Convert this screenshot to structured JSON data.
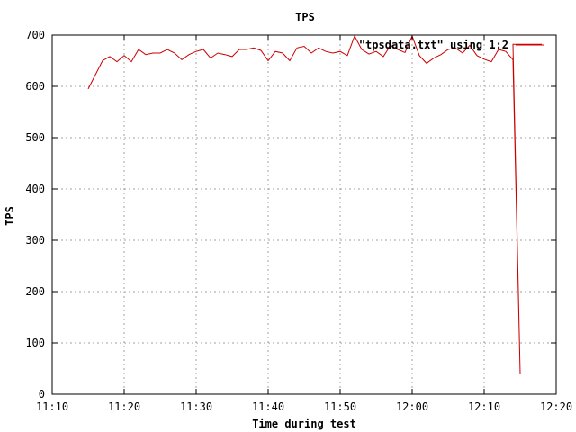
{
  "chart_data": {
    "type": "line",
    "title": "TPS",
    "xlabel": "Time during test",
    "ylabel": "TPS",
    "x_type": "time",
    "xlim": [
      "11:10",
      "12:20"
    ],
    "ylim": [
      0,
      700
    ],
    "x_ticks": [
      "11:10",
      "11:20",
      "11:30",
      "11:40",
      "11:50",
      "12:00",
      "12:10",
      "12:20"
    ],
    "y_ticks": [
      "0",
      "100",
      "200",
      "300",
      "400",
      "500",
      "600",
      "700"
    ],
    "grid": true,
    "legend_position": "top-right",
    "series": [
      {
        "name": "\"tpsdata.txt\" using 1:2",
        "color": "#cc0000",
        "points": [
          [
            "11:15",
            595
          ],
          [
            "11:17",
            650
          ],
          [
            "11:18",
            658
          ],
          [
            "11:19",
            648
          ],
          [
            "11:20",
            660
          ],
          [
            "11:21",
            648
          ],
          [
            "11:22",
            672
          ],
          [
            "11:23",
            662
          ],
          [
            "11:24",
            665
          ],
          [
            "11:25",
            665
          ],
          [
            "11:26",
            672
          ],
          [
            "11:27",
            665
          ],
          [
            "11:28",
            652
          ],
          [
            "11:29",
            662
          ],
          [
            "11:30",
            668
          ],
          [
            "11:31",
            672
          ],
          [
            "11:32",
            655
          ],
          [
            "11:33",
            665
          ],
          [
            "11:34",
            662
          ],
          [
            "11:35",
            658
          ],
          [
            "11:36",
            672
          ],
          [
            "11:37",
            672
          ],
          [
            "11:38",
            675
          ],
          [
            "11:39",
            670
          ],
          [
            "11:40",
            650
          ],
          [
            "11:41",
            668
          ],
          [
            "11:42",
            665
          ],
          [
            "11:43",
            650
          ],
          [
            "11:44",
            675
          ],
          [
            "11:45",
            678
          ],
          [
            "11:46",
            665
          ],
          [
            "11:47",
            675
          ],
          [
            "11:48",
            668
          ],
          [
            "11:49",
            665
          ],
          [
            "11:50",
            668
          ],
          [
            "11:51",
            660
          ],
          [
            "11:52",
            698
          ],
          [
            "11:53",
            672
          ],
          [
            "11:54",
            663
          ],
          [
            "11:55",
            668
          ],
          [
            "11:56",
            658
          ],
          [
            "11:57",
            680
          ],
          [
            "11:58",
            672
          ],
          [
            "11:59",
            666
          ],
          [
            "12:00",
            698
          ],
          [
            "12:01",
            660
          ],
          [
            "12:02",
            645
          ],
          [
            "12:03",
            655
          ],
          [
            "12:04",
            662
          ],
          [
            "12:05",
            672
          ],
          [
            "12:06",
            675
          ],
          [
            "12:07",
            665
          ],
          [
            "12:08",
            680
          ],
          [
            "12:09",
            660
          ],
          [
            "12:10",
            653
          ],
          [
            "12:11",
            648
          ],
          [
            "12:12",
            672
          ],
          [
            "12:13",
            668
          ],
          [
            "12:14",
            652
          ],
          [
            "12:15",
            40
          ],
          [
            "12:14",
            682
          ],
          [
            "12:18",
            682
          ]
        ]
      }
    ]
  }
}
